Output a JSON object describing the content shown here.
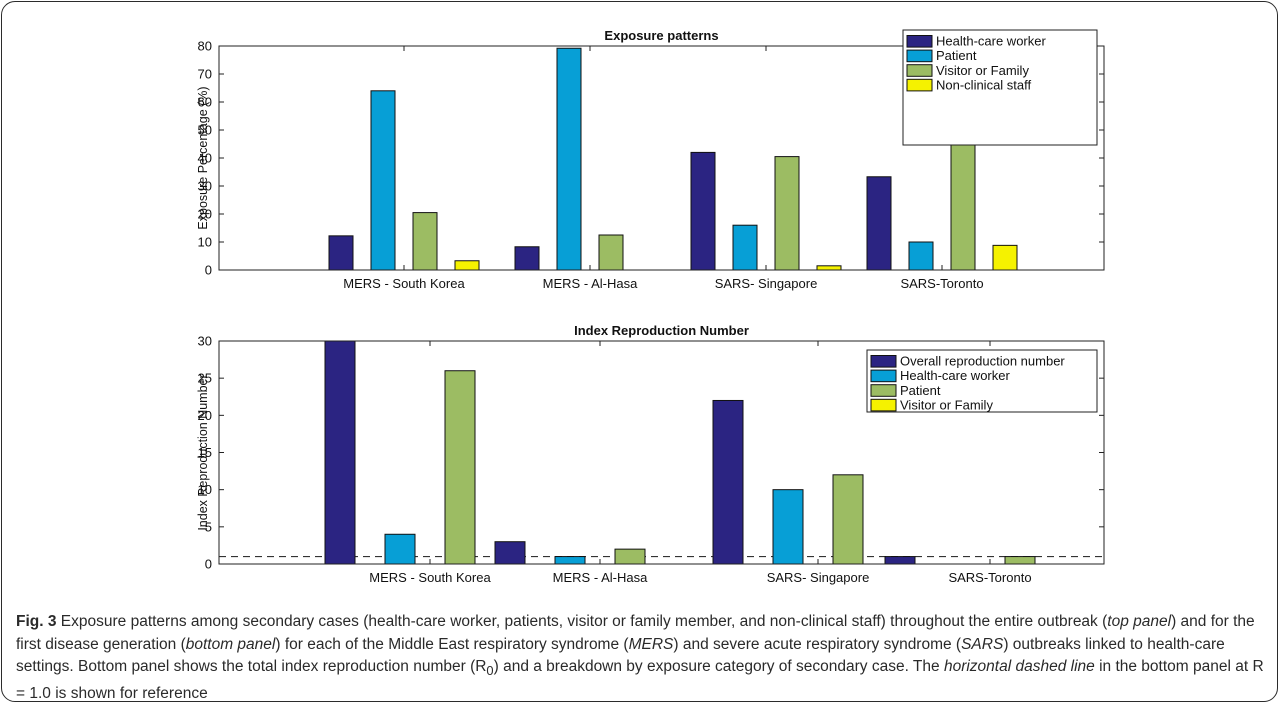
{
  "chart_data": [
    {
      "type": "bar",
      "title": "Exposure patterns",
      "xlabel": "",
      "ylabel": "Exposure Percentage (%)",
      "ylim": [
        0,
        80
      ],
      "yticks": [
        0,
        10,
        20,
        30,
        40,
        50,
        60,
        70,
        80
      ],
      "categories": [
        "MERS - South Korea",
        "MERS - Al-Hasa",
        "SARS- Singapore",
        "SARS-Toronto"
      ],
      "series": [
        {
          "name": "Health-care worker",
          "color": "#2b2482",
          "values": [
            12.2,
            8.3,
            42,
            33.3
          ]
        },
        {
          "name": "Patient",
          "color": "#079fd6",
          "values": [
            64,
            79.2,
            16,
            10
          ]
        },
        {
          "name": "Visitor or Family",
          "color": "#9cbc63",
          "values": [
            20.5,
            12.5,
            40.5,
            47.9
          ]
        },
        {
          "name": "Non-clinical staff",
          "color": "#f5f200",
          "values": [
            3.3,
            0,
            1.5,
            8.8
          ]
        }
      ],
      "legend": "top-right",
      "grid": false
    },
    {
      "type": "bar",
      "title": "Index Reproduction Number",
      "xlabel": "",
      "ylabel": "Index Reproduction Number",
      "ylim": [
        0,
        30
      ],
      "yticks": [
        0,
        5,
        10,
        15,
        20,
        25,
        30
      ],
      "categories": [
        "MERS - South Korea",
        "MERS - Al-Hasa",
        "SARS- Singapore",
        "SARS-Toronto"
      ],
      "series": [
        {
          "name": "Overall reproduction number",
          "color": "#2b2482",
          "values": [
            30,
            3,
            22,
            1
          ]
        },
        {
          "name": "Health-care worker",
          "color": "#079fd6",
          "values": [
            4,
            1,
            10,
            0
          ]
        },
        {
          "name": "Patient",
          "color": "#9cbc63",
          "values": [
            26,
            2,
            12,
            1
          ]
        },
        {
          "name": "Visitor or Family",
          "color": "#f5f200",
          "values": [
            0,
            0,
            0,
            0
          ]
        }
      ],
      "reference_line": 1.0,
      "legend": "top-right",
      "grid": false
    }
  ],
  "caption": {
    "fig_label": "Fig. 3",
    "t1": " Exposure patterns among secondary cases (health-care worker, patients, visitor or family member, and non-clinical staff) throughout the entire outbreak (",
    "e1": "top panel",
    "t2": ") and for the first disease generation (",
    "e2": "bottom panel",
    "t3": ") for each of the Middle East respiratory syndrome (",
    "e3": "MERS",
    "t4": ") and severe acute respiratory syndrome (",
    "e4": "SARS",
    "t5": ") outbreaks linked to health-care settings. Bottom panel shows the total index reproduction number (R",
    "sub": "0",
    "t6": ") and a breakdown by exposure category of secondary case. The ",
    "e5": "horizontal dashed line",
    "t7": " in the bottom panel at R = 1.0 is shown for reference"
  }
}
